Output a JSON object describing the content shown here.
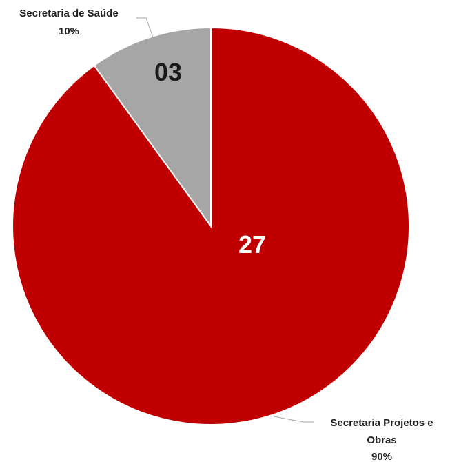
{
  "chart_data": {
    "type": "pie",
    "slices": [
      {
        "name": "Secretaria de Saúde",
        "value_label": "03",
        "value": 3,
        "percent_label": "10%",
        "percent": 10,
        "color": "#a6a6a6",
        "value_color": "#1a1a1a",
        "name_lines": [
          "Secretaria de Saúde"
        ]
      },
      {
        "name": "Secretaria Projetos e Obras",
        "value_label": "27",
        "value": 27,
        "percent_label": "90%",
        "percent": 90,
        "color": "#c00000",
        "value_color": "#ffffff",
        "name_lines": [
          "Secretaria Projetos e",
          "Obras"
        ]
      }
    ]
  }
}
